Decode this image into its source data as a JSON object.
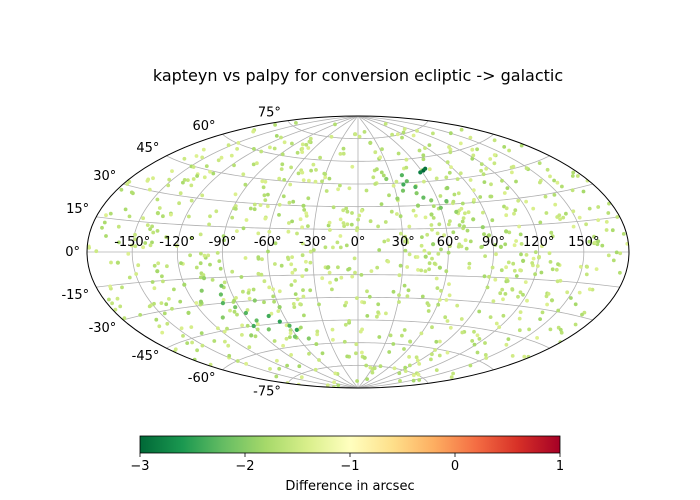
{
  "chart_data": {
    "type": "scatter",
    "projection": "aitoff",
    "title": "kapteyn vs palpy for conversion ecliptic -> galactic",
    "grid": true,
    "lon_tick_labels": [
      "-150°",
      "-120°",
      "-90°",
      "-60°",
      "-30°",
      "0°",
      "30°",
      "60°",
      "90°",
      "120°",
      "150°"
    ],
    "lat_tick_labels": [
      "-75°",
      "-60°",
      "-45°",
      "-30°",
      "-15°",
      "0°",
      "15°",
      "30°",
      "45°",
      "60°",
      "75°"
    ],
    "colorbar": {
      "label": "Difference in arcsec",
      "range": [
        -3,
        1
      ],
      "tick_labels": [
        "−3",
        "−2",
        "−1",
        "0",
        "1"
      ],
      "colormap": [
        "#006837",
        "#1a9850",
        "#66bd63",
        "#a6d96a",
        "#d9ef8b",
        "#ffffbf",
        "#fee08b",
        "#fdae61",
        "#f46d43",
        "#d73027",
        "#a50026"
      ]
    },
    "points": [
      {
        "lon": 62,
        "lat": 52,
        "value": -3.0
      },
      {
        "lon": 58,
        "lat": 51,
        "value": -2.8
      },
      {
        "lon": 65,
        "lat": 53,
        "value": -2.9
      },
      {
        "lon": 40,
        "lat": 50,
        "value": -2.3
      },
      {
        "lon": 42,
        "lat": 46,
        "value": -2.2
      },
      {
        "lon": 38,
        "lat": 44,
        "value": -2.4
      },
      {
        "lon": 36,
        "lat": 40,
        "value": -2.1
      },
      {
        "lon": 47,
        "lat": 42,
        "value": -2.3
      },
      {
        "lon": 46,
        "lat": 38,
        "value": -2.0
      },
      {
        "lon": 50,
        "lat": 35,
        "value": -2.2
      },
      {
        "lon": 55,
        "lat": 33,
        "value": -2.0
      },
      {
        "lon": 44,
        "lat": 30,
        "value": -1.9
      },
      {
        "lon": 60,
        "lat": 28,
        "value": -2.1
      },
      {
        "lon": 66,
        "lat": 32,
        "value": -2.2
      },
      {
        "lon": 70,
        "lat": 25,
        "value": -1.9
      },
      {
        "lon": 80,
        "lat": 20,
        "value": -1.8
      },
      {
        "lon": 85,
        "lat": 15,
        "value": -1.9
      },
      {
        "lon": 88,
        "lat": 10,
        "value": -1.8
      },
      {
        "lon": 52,
        "lat": 24,
        "value": -1.8
      },
      {
        "lon": 30,
        "lat": 35,
        "value": -1.9
      },
      {
        "lon": 25,
        "lat": 48,
        "value": -2.0
      },
      {
        "lon": 72,
        "lat": 40,
        "value": -1.9
      },
      {
        "lon": -95,
        "lat": -20,
        "value": -2.1
      },
      {
        "lon": -98,
        "lat": -25,
        "value": -2.2
      },
      {
        "lon": -100,
        "lat": -30,
        "value": -2.3
      },
      {
        "lon": -93,
        "lat": -33,
        "value": -2.1
      },
      {
        "lon": -88,
        "lat": -37,
        "value": -2.3
      },
      {
        "lon": -84,
        "lat": -42,
        "value": -2.2
      },
      {
        "lon": -90,
        "lat": -45,
        "value": -2.4
      },
      {
        "lon": -80,
        "lat": -48,
        "value": -2.1
      },
      {
        "lon": -72,
        "lat": -40,
        "value": -2.4
      },
      {
        "lon": -66,
        "lat": -44,
        "value": -2.5
      },
      {
        "lon": -60,
        "lat": -47,
        "value": -2.3
      },
      {
        "lon": -56,
        "lat": -50,
        "value": -2.5
      },
      {
        "lon": -62,
        "lat": -54,
        "value": -2.1
      },
      {
        "lon": -50,
        "lat": -56,
        "value": -2.0
      },
      {
        "lon": -76,
        "lat": -30,
        "value": -2.0
      },
      {
        "lon": -105,
        "lat": -15,
        "value": -1.9
      },
      {
        "lon": -110,
        "lat": -22,
        "value": -2.0
      },
      {
        "lon": -115,
        "lat": -28,
        "value": -1.9
      },
      {
        "lon": -120,
        "lat": -18,
        "value": -1.8
      },
      {
        "lon": -108,
        "lat": -38,
        "value": -2.0
      },
      {
        "lon": -100,
        "lat": -50,
        "value": -1.9
      },
      {
        "lon": -130,
        "lat": -33,
        "value": -1.8
      },
      {
        "lon": -135,
        "lat": -10,
        "value": -1.8
      },
      {
        "lon": -60,
        "lat": -35,
        "value": -1.9
      },
      {
        "lon": 50,
        "lat": 5,
        "value": -1.9
      },
      {
        "lon": 45,
        "lat": -3,
        "value": -1.8
      },
      {
        "lon": 55,
        "lat": -10,
        "value": -1.8
      },
      {
        "lon": 95,
        "lat": 3,
        "value": -1.8
      },
      {
        "lon": 100,
        "lat": 12,
        "value": -1.8
      },
      {
        "lon": 110,
        "lat": -5,
        "value": -1.8
      },
      {
        "lon": -40,
        "lat": 30,
        "value": -1.8
      },
      {
        "lon": -20,
        "lat": -10,
        "value": -1.8
      },
      {
        "lon": -140,
        "lat": 20,
        "value": -1.7
      },
      {
        "lon": 140,
        "lat": -25,
        "value": -1.7
      },
      {
        "lon": 160,
        "lat": 5,
        "value": -1.8
      },
      {
        "lon": -160,
        "lat": -5,
        "value": -1.7
      },
      {
        "lon": 10,
        "lat": -70,
        "value": -1.7
      },
      {
        "lon": 20,
        "lat": 72,
        "value": -1.7
      }
    ]
  }
}
